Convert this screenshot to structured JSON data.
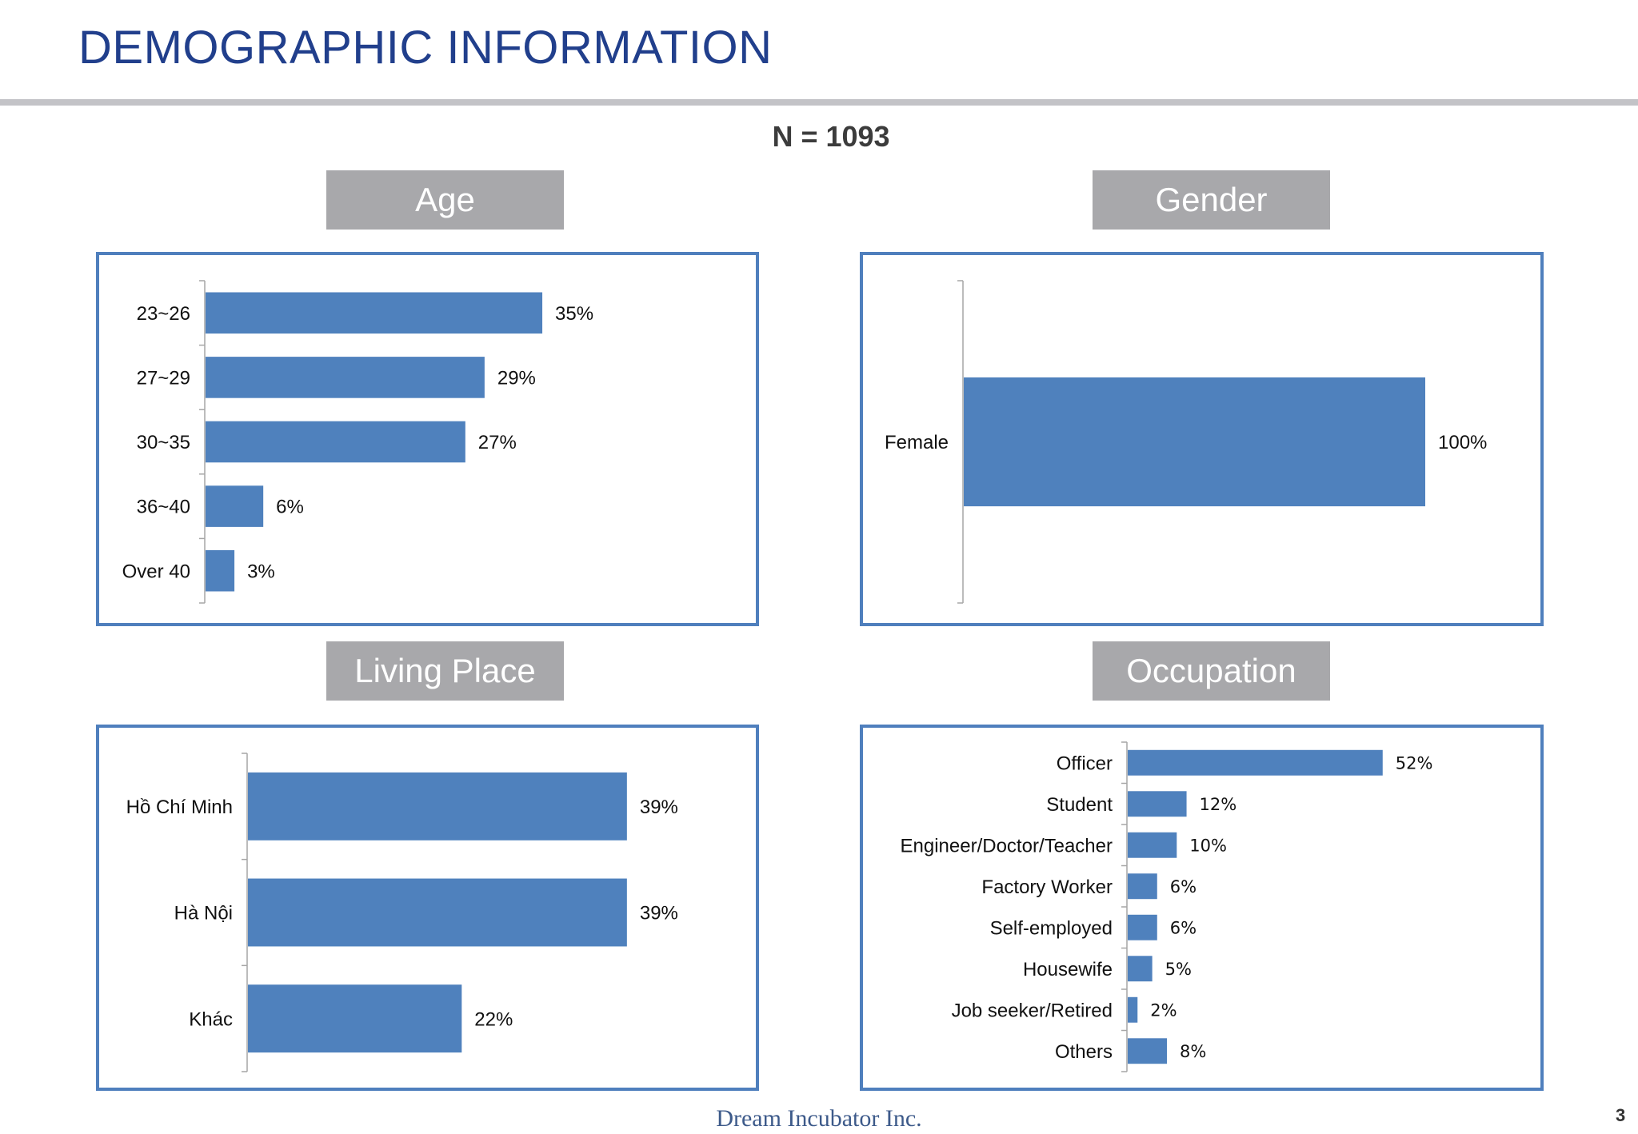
{
  "page_title": "DEMOGRAPHIC INFORMATION",
  "sample_size": "N = 1093",
  "footer": "Dream Incubator Inc.",
  "page_number": "3",
  "colors": {
    "bar": "#4f81bd",
    "frame": "#4f7fbd",
    "header_bg": "#a8a8ab",
    "title": "#213f8c"
  },
  "chart_data": [
    {
      "key": "age",
      "type": "bar",
      "orientation": "horizontal",
      "title": "Age",
      "categories": [
        "23~26",
        "27~29",
        "30~35",
        "36~40",
        "Over 40"
      ],
      "values": [
        35,
        29,
        27,
        6,
        3
      ],
      "labels": [
        "35%",
        "29%",
        "27%",
        "6%",
        "3%"
      ],
      "unit": "%"
    },
    {
      "key": "gender",
      "type": "bar",
      "orientation": "horizontal",
      "title": "Gender",
      "categories": [
        "Female"
      ],
      "values": [
        100
      ],
      "labels": [
        "100%"
      ],
      "unit": "%"
    },
    {
      "key": "living",
      "type": "bar",
      "orientation": "horizontal",
      "title": "Living Place",
      "categories": [
        "Hồ Chí Minh",
        "Hà Nội",
        "Khác"
      ],
      "values": [
        39,
        39,
        22
      ],
      "labels": [
        "39%",
        "39%",
        "22%"
      ],
      "unit": "%"
    },
    {
      "key": "occupation",
      "type": "bar",
      "orientation": "horizontal",
      "title": "Occupation",
      "categories": [
        "Officer",
        "Student",
        "Engineer/Doctor/Teacher",
        "Factory Worker",
        "Self-employed",
        "Housewife",
        "Job seeker/Retired",
        "Others"
      ],
      "values": [
        52,
        12,
        10,
        6,
        6,
        5,
        2,
        8
      ],
      "labels": [
        "52%",
        "12%",
        "10%",
        "6%",
        "6%",
        "5%",
        "2%",
        "8%"
      ],
      "unit": "%"
    }
  ]
}
